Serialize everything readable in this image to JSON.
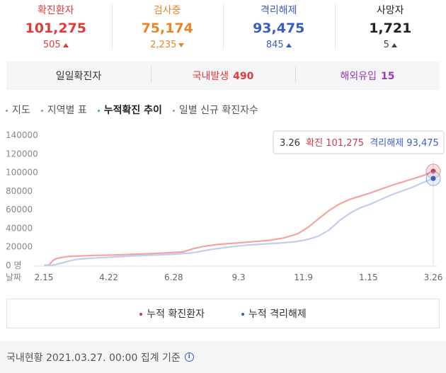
{
  "stats": [
    {
      "label": "확진환자",
      "value": "101,275",
      "delta": "505",
      "dir": "up",
      "color": "#e03b3b"
    },
    {
      "label": "검사중",
      "value": "75,174",
      "delta": "2,235",
      "dir": "down",
      "color": "#e8862b"
    },
    {
      "label": "격리해제",
      "value": "93,475",
      "delta": "845",
      "dir": "up",
      "color": "#3b5cc8"
    },
    {
      "label": "사망자",
      "value": "1,721",
      "delta": "5",
      "dir": "up",
      "color": "#222222"
    }
  ],
  "daily": {
    "label": "일일확진자",
    "domestic_label": "국내발생",
    "domestic_value": "490",
    "domestic_color": "#e03b3b",
    "overseas_label": "해외유입",
    "overseas_value": "15",
    "overseas_color": "#9b3ab5"
  },
  "tabs": [
    {
      "label": "지도",
      "active": false
    },
    {
      "label": "지역별 표",
      "active": false
    },
    {
      "label": "누적확진 추이",
      "active": true
    },
    {
      "label": "일별 신규 확진자수",
      "active": false
    }
  ],
  "chart_data": {
    "type": "line",
    "x_unit_label": "날짜",
    "x_ticks": [
      "2.15",
      "4.22",
      "6.28",
      "9.3",
      "11.9",
      "1.15",
      "3.26"
    ],
    "y_ticks": [
      "0 명",
      "20000",
      "40000",
      "60000",
      "80000",
      "100000",
      "120000",
      "140000"
    ],
    "ylim": [
      0,
      140000
    ],
    "series": [
      {
        "name": "누적 확진환자",
        "color": "#f4a3a3",
        "marker_color": "#cc3b4a",
        "values": [
          [
            0,
            0
          ],
          [
            3,
            500
          ],
          [
            5,
            5000
          ],
          [
            7,
            7200
          ],
          [
            10,
            8500
          ],
          [
            14,
            9600
          ],
          [
            20,
            10200
          ],
          [
            30,
            10800
          ],
          [
            40,
            11200
          ],
          [
            50,
            11900
          ],
          [
            60,
            12500
          ],
          [
            70,
            13500
          ],
          [
            75,
            14000
          ],
          [
            80,
            14500
          ],
          [
            86,
            18000
          ],
          [
            92,
            20500
          ],
          [
            100,
            22500
          ],
          [
            110,
            24000
          ],
          [
            120,
            25500
          ],
          [
            130,
            27000
          ],
          [
            138,
            29500
          ],
          [
            146,
            34000
          ],
          [
            152,
            41000
          ],
          [
            158,
            50000
          ],
          [
            164,
            59000
          ],
          [
            170,
            66000
          ],
          [
            176,
            71000
          ],
          [
            182,
            74500
          ],
          [
            188,
            78000
          ],
          [
            194,
            82000
          ],
          [
            200,
            86000
          ],
          [
            206,
            89500
          ],
          [
            212,
            93000
          ],
          [
            218,
            96500
          ],
          [
            224,
            101275
          ]
        ]
      },
      {
        "name": "누적 격리해제",
        "color": "#c3cdf0",
        "marker_color": "#3b5cc8",
        "values": [
          [
            0,
            0
          ],
          [
            5,
            200
          ],
          [
            8,
            1500
          ],
          [
            12,
            3500
          ],
          [
            16,
            5500
          ],
          [
            20,
            6800
          ],
          [
            28,
            7800
          ],
          [
            35,
            8500
          ],
          [
            45,
            9600
          ],
          [
            55,
            10500
          ],
          [
            65,
            11200
          ],
          [
            75,
            12100
          ],
          [
            85,
            13400
          ],
          [
            95,
            16800
          ],
          [
            105,
            19500
          ],
          [
            115,
            21500
          ],
          [
            125,
            22800
          ],
          [
            135,
            24000
          ],
          [
            145,
            25500
          ],
          [
            152,
            28000
          ],
          [
            158,
            31500
          ],
          [
            164,
            38000
          ],
          [
            170,
            48000
          ],
          [
            176,
            56000
          ],
          [
            182,
            62000
          ],
          [
            188,
            66000
          ],
          [
            194,
            71000
          ],
          [
            200,
            76000
          ],
          [
            206,
            80000
          ],
          [
            212,
            84000
          ],
          [
            218,
            89000
          ],
          [
            224,
            93475
          ]
        ]
      }
    ],
    "tooltip": {
      "date": "3.26",
      "confirmed_label": "확진",
      "confirmed_value": "101,275",
      "released_label": "격리해제",
      "released_value": "93,475"
    },
    "grid": false,
    "legend_position": "bottom"
  },
  "footer": {
    "text": "국내현황 2021.03.27. 00:00 집계 기준"
  }
}
